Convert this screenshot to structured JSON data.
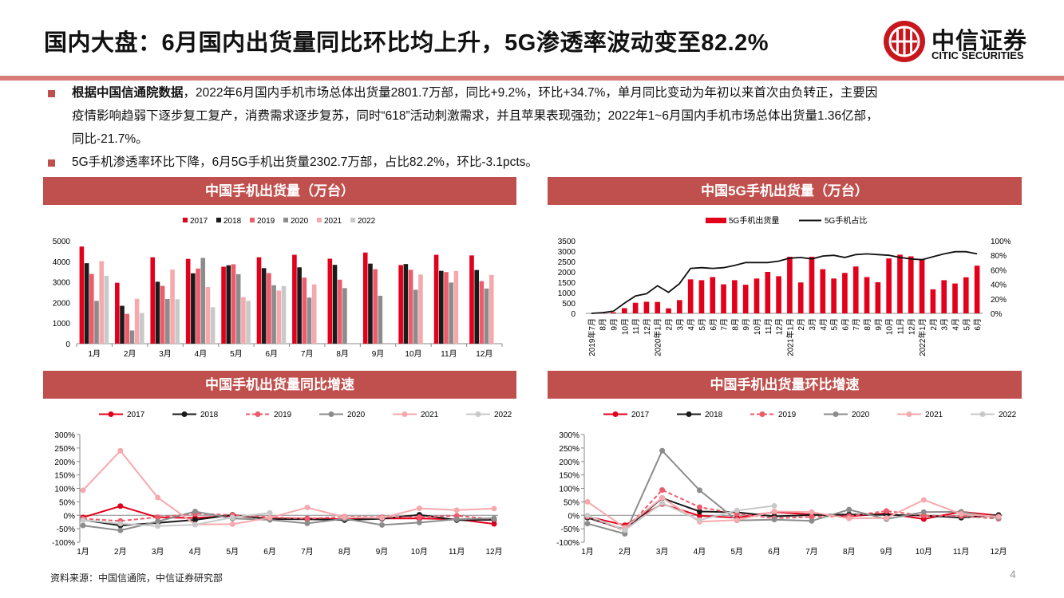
{
  "header": {
    "title": "国内大盘：6月国内出货量同比环比均上升，5G渗透率波动变至82.2%",
    "logo_cn": "中信证券",
    "logo_en": "CITIC SECURITIES"
  },
  "bullets": [
    {
      "bold": "根据中国信通院数据",
      "lines": [
        "，2022年6月国内手机市场总体出货量2801.7万部，同比+9.2%，环比+34.7%，单月同比变动为年初以来首次由负转正，主要因",
        "疫情影响趋弱下逐步复工复产，消费需求逐步复苏，同时“618”活动刺激需求，并且苹果表现强劲；2022年1~6月国内手机市场总体出货量1.36亿部，",
        "同比-21.7%。"
      ]
    },
    {
      "text": "5G手机渗透率环比下降，6月5G手机出货量2302.7万部，占比82.2%，环比-3.1pcts。"
    }
  ],
  "footer": {
    "source": "资料来源：中国信通院，中信证券研究部",
    "page": "4"
  },
  "colors": {
    "accent": "#c0504d",
    "y2017": "#e3001b",
    "y2018": "#1a1a1a",
    "y2019": "#ee5b6b",
    "y2020": "#8c8c8c",
    "y2021": "#f5a9ac",
    "y2022": "#c9c9c9"
  },
  "chart_data": [
    {
      "id": "c1",
      "type": "bar",
      "title": "中国手机出货量（万台）",
      "categories": [
        "1月",
        "2月",
        "3月",
        "4月",
        "5月",
        "6月",
        "7月",
        "8月",
        "9月",
        "10月",
        "11月",
        "12月"
      ],
      "series": [
        {
          "name": "2017",
          "values": [
            4720,
            2960,
            4200,
            4120,
            3740,
            4200,
            4320,
            4130,
            4430,
            3820,
            4320,
            4290
          ]
        },
        {
          "name": "2018",
          "values": [
            3910,
            1840,
            3010,
            3420,
            3810,
            3670,
            3710,
            3830,
            3890,
            3870,
            3540,
            3580
          ]
        },
        {
          "name": "2019",
          "values": [
            3390,
            1450,
            2810,
            3650,
            3860,
            3430,
            3210,
            3110,
            3620,
            3590,
            3480,
            3040
          ]
        },
        {
          "name": "2020",
          "values": [
            2080,
            640,
            2170,
            4170,
            3380,
            2840,
            2240,
            2700,
            2330,
            2620,
            2970,
            2680
          ]
        },
        {
          "name": "2021",
          "values": [
            4010,
            2180,
            3600,
            2750,
            2260,
            2580,
            2880,
            null,
            null,
            3360,
            3530,
            3340
          ]
        },
        {
          "name": "2022",
          "values": [
            3300,
            1490,
            2160,
            1770,
            2080,
            2800,
            null,
            null,
            null,
            null,
            null,
            null
          ]
        }
      ],
      "ylim": [
        0,
        5000
      ],
      "yticks": [
        "0",
        "1000",
        "2000",
        "3000",
        "4000",
        "5000"
      ],
      "legend": "top"
    },
    {
      "id": "c2",
      "type": "bar",
      "title": "中国5G手机出货量（万台）",
      "categories": [
        "2019年7月",
        "8月",
        "9月",
        "10月",
        "11月",
        "12月",
        "2020年1月",
        "2月",
        "3月",
        "4月",
        "5月",
        "6月",
        "7月",
        "8月",
        "9月",
        "10月",
        "11月",
        "12月",
        "2021年1月",
        "2月",
        "3月",
        "4月",
        "5月",
        "6月",
        "7月",
        "8月",
        "9月",
        "10月",
        "11月",
        "12月",
        "2022年1月",
        "2月",
        "3月",
        "4月",
        "5月",
        "6月"
      ],
      "bar_series": {
        "name": "5G手机出货量",
        "values": [
          0,
          20,
          50,
          250,
          510,
          560,
          550,
          240,
          640,
          1640,
          1600,
          1750,
          1400,
          1600,
          1380,
          1680,
          2000,
          1790,
          2730,
          1490,
          2730,
          2130,
          1680,
          1950,
          2260,
          1750,
          1500,
          2650,
          2830,
          2750,
          2620,
          1160,
          1600,
          1440,
          1740,
          2300
        ]
      },
      "line_series": {
        "name": "5G手机占比",
        "values": [
          0,
          1,
          3,
          14,
          24,
          27,
          38,
          29,
          41,
          62,
          63,
          62,
          63,
          66,
          70,
          70,
          70,
          72,
          76,
          77,
          75,
          79,
          80,
          77,
          81,
          82,
          81,
          80,
          77,
          75,
          74,
          78,
          82,
          85,
          85,
          82
        ]
      },
      "ylim": [
        0,
        3500
      ],
      "y2lim": [
        0,
        100
      ],
      "yticks": [
        "0",
        "500",
        "1000",
        "1500",
        "2000",
        "2500",
        "3000",
        "3500"
      ],
      "y2ticks": [
        "0%",
        "20%",
        "40%",
        "60%",
        "80%",
        "100%"
      ],
      "legend": "top"
    },
    {
      "id": "c3",
      "type": "line",
      "title": "中国手机出货量同比增速",
      "categories": [
        "1月",
        "2月",
        "3月",
        "4月",
        "5月",
        "6月",
        "7月",
        "8月",
        "9月",
        "10月",
        "11月",
        "12月"
      ],
      "series": [
        {
          "name": "2017",
          "values": [
            -8,
            34,
            -8,
            -10,
            -2,
            -12,
            -12,
            -15,
            -12,
            -12,
            -15,
            -32
          ]
        },
        {
          "name": "2018",
          "values": [
            -17,
            -38,
            -28,
            -17,
            2,
            -14,
            -15,
            -18,
            -13,
            2,
            -18,
            -17
          ]
        },
        {
          "name": "2019",
          "values": [
            -13,
            -21,
            -7,
            6,
            1,
            -7,
            -13,
            -5,
            -7,
            -7,
            -2,
            -15
          ]
        },
        {
          "name": "2020",
          "values": [
            -38,
            -56,
            -23,
            14,
            -12,
            -17,
            -30,
            -13,
            -36,
            -27,
            -15,
            -11
          ]
        },
        {
          "name": "2021",
          "values": [
            93,
            240,
            66,
            -34,
            -33,
            -9,
            29,
            -7,
            -10,
            26,
            19,
            25
          ]
        },
        {
          "name": "2022",
          "values": [
            -18,
            -31,
            -40,
            -35,
            -8,
            9,
            null,
            null,
            null,
            null,
            null,
            null
          ]
        }
      ],
      "ylim": [
        -100,
        300
      ],
      "yticks": [
        "-100%",
        "-50%",
        "0%",
        "50%",
        "100%",
        "150%",
        "200%",
        "250%",
        "300%"
      ],
      "legend": "top"
    },
    {
      "id": "c4",
      "type": "line",
      "title": "中国手机出货量环比增速",
      "categories": [
        "1月",
        "2月",
        "3月",
        "4月",
        "5月",
        "6月",
        "7月",
        "8月",
        "9月",
        "10月",
        "11月",
        "12月"
      ],
      "series": [
        {
          "name": "2017",
          "values": [
            -5,
            -37,
            42,
            -2,
            -9,
            12,
            3,
            -4,
            7,
            -14,
            13,
            -1
          ]
        },
        {
          "name": "2018",
          "values": [
            -9,
            -53,
            64,
            14,
            11,
            -4,
            1,
            3,
            2,
            -1,
            -9,
            1
          ]
        },
        {
          "name": "2019",
          "values": [
            -5,
            -57,
            94,
            30,
            6,
            -11,
            -6,
            -3,
            16,
            -1,
            -3,
            -13
          ]
        },
        {
          "name": "2020",
          "values": [
            -31,
            -69,
            240,
            93,
            -19,
            -16,
            -21,
            21,
            -14,
            12,
            13,
            -10
          ]
        },
        {
          "name": "2021",
          "values": [
            50,
            -46,
            65,
            -24,
            -18,
            14,
            12,
            -12,
            -10,
            57,
            5,
            -5
          ]
        },
        {
          "name": "2022",
          "values": [
            -1,
            -55,
            45,
            -18,
            18,
            35,
            null,
            null,
            null,
            null,
            null,
            null
          ]
        }
      ],
      "ylim": [
        -100,
        300
      ],
      "yticks": [
        "-100%",
        "-50%",
        "0%",
        "50%",
        "100%",
        "150%",
        "200%",
        "250%",
        "300%"
      ],
      "legend": "top"
    }
  ]
}
